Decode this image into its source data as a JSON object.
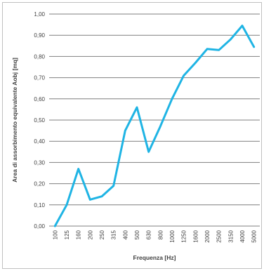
{
  "chart_data": {
    "type": "line",
    "title": "",
    "xlabel": "Frequenza [Hz]",
    "ylabel": "Area di assorbimento equivalente Aobj [mq]",
    "categories": [
      "100",
      "125",
      "160",
      "200",
      "250",
      "315",
      "400",
      "500",
      "630",
      "800",
      "1000",
      "1250",
      "1600",
      "2000",
      "2500",
      "3150",
      "4000",
      "5000"
    ],
    "series": [
      {
        "values": [
          0.0,
          0.1,
          0.27,
          0.125,
          0.14,
          0.19,
          0.45,
          0.56,
          0.35,
          0.47,
          0.6,
          0.71,
          0.77,
          0.835,
          0.83,
          0.88,
          0.945,
          0.845
        ],
        "color": "#1fb4e4"
      }
    ],
    "ylim": [
      0,
      1
    ],
    "yticks": [
      "0,00",
      "0,10",
      "0,20",
      "0,30",
      "0,40",
      "0,50",
      "0,60",
      "0,70",
      "0,80",
      "0,90",
      "1,00"
    ],
    "grid": true,
    "legend": "none"
  }
}
